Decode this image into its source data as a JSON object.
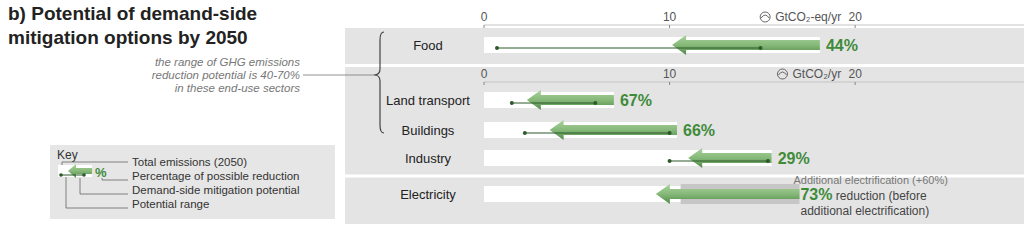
{
  "chart_data": {
    "type": "bar",
    "orientation": "horizontal",
    "data_labels": true,
    "title": "b) Potential of demand-side mitigation options by 2050",
    "annotation": [
      "the range of GHG emissions",
      "reduction potential is 40-70%",
      "in these end-use sectors"
    ],
    "key": {
      "title": "Key",
      "symbol": "%",
      "items": [
        "Total emissions (2050)",
        "Percentage of possible reduction",
        "Demand-side mitigation potential",
        "Potential range"
      ]
    },
    "panels": [
      {
        "axis_label": "GtCO₂-eq/yr",
        "xlim": [
          0,
          29.1
        ],
        "xticks": [
          0,
          10,
          20
        ],
        "categories": [
          "Food"
        ],
        "totals": [
          18.1
        ],
        "reductions": [
          44
        ],
        "value_labels": [
          "44%"
        ],
        "ranges": [
          [
            0.7,
            14.9
          ]
        ]
      },
      {
        "axis_label": "GtCO₂/yr",
        "xlim": [
          0,
          29.1
        ],
        "xticks": [
          0,
          10,
          20
        ],
        "categories": [
          "Land transport",
          "Buildings",
          "Industry",
          "Electricity"
        ],
        "totals": [
          7.0,
          10.4,
          15.5,
          10.6
        ],
        "additional": [
          null,
          null,
          null,
          6.4
        ],
        "additional_label": "Additional electrification (+60%)",
        "reductions": [
          67,
          66,
          29,
          73
        ],
        "value_labels": [
          "67%",
          "66%",
          "29%",
          "73%"
        ],
        "notes": [
          null,
          null,
          null,
          "reduction (before additional electrification)"
        ],
        "ranges": [
          [
            1.5,
            6.0
          ],
          [
            2.2,
            10.0
          ],
          [
            10.0,
            15.3
          ],
          null
        ]
      }
    ]
  }
}
